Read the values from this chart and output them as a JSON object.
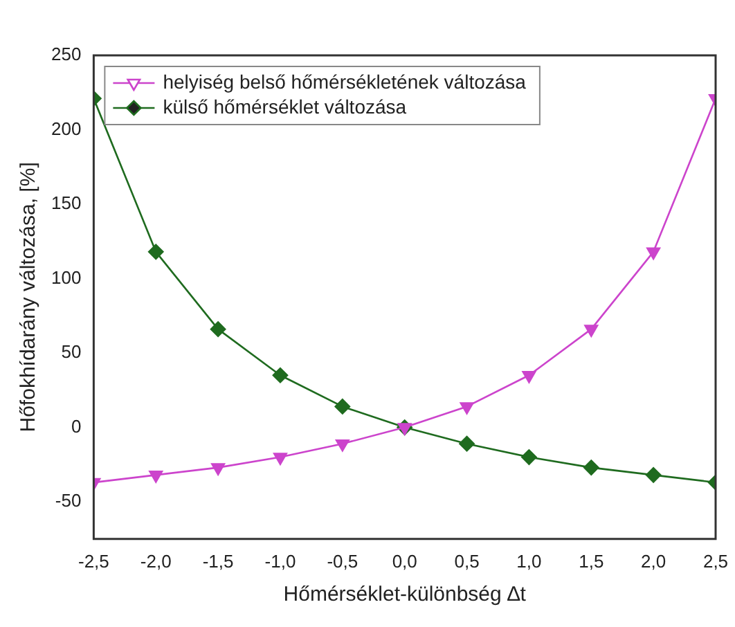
{
  "chart_data": {
    "type": "line",
    "xlabel": "Hőmérséklet-különbség ∆t",
    "ylabel": "Hőfokhídarány változása, [%]",
    "x": [
      -2.5,
      -2.0,
      -1.5,
      -1.0,
      -0.5,
      0.0,
      0.5,
      1.0,
      1.5,
      2.0,
      2.5
    ],
    "series": [
      {
        "name": "helyiség belső hőmérsékletének változása",
        "color": "#cc44cc",
        "marker": "triangle-down",
        "values": [
          -37,
          -32,
          -27,
          -20,
          -11,
          0,
          14,
          35,
          66,
          118,
          221
        ]
      },
      {
        "name": "külső hőmérséklet változása",
        "color": "#1f6b1f",
        "marker": "diamond",
        "values": [
          221,
          118,
          66,
          35,
          14,
          0,
          -11,
          -20,
          -27,
          -32,
          -37
        ]
      }
    ],
    "xlim": [
      -2.5,
      2.5
    ],
    "xticks": [
      {
        "value": -2.5,
        "label": "-2,5"
      },
      {
        "value": -2.0,
        "label": "-2,0"
      },
      {
        "value": -1.5,
        "label": "-1,5"
      },
      {
        "value": -1.0,
        "label": "-1,0"
      },
      {
        "value": -0.5,
        "label": "-0,5"
      },
      {
        "value": 0,
        "label": "0,0"
      },
      {
        "value": 0.5,
        "label": "0,5"
      },
      {
        "value": 1.0,
        "label": "1,0"
      },
      {
        "value": 1.5,
        "label": "1,5"
      },
      {
        "value": 2.0,
        "label": "2,0"
      },
      {
        "value": 2.5,
        "label": "2,5"
      }
    ],
    "ylim": [
      -75,
      250
    ],
    "yticks": [
      -50,
      0,
      50,
      100,
      150,
      200,
      250
    ],
    "grid": false,
    "legend": "top left",
    "line_style": "solid"
  }
}
